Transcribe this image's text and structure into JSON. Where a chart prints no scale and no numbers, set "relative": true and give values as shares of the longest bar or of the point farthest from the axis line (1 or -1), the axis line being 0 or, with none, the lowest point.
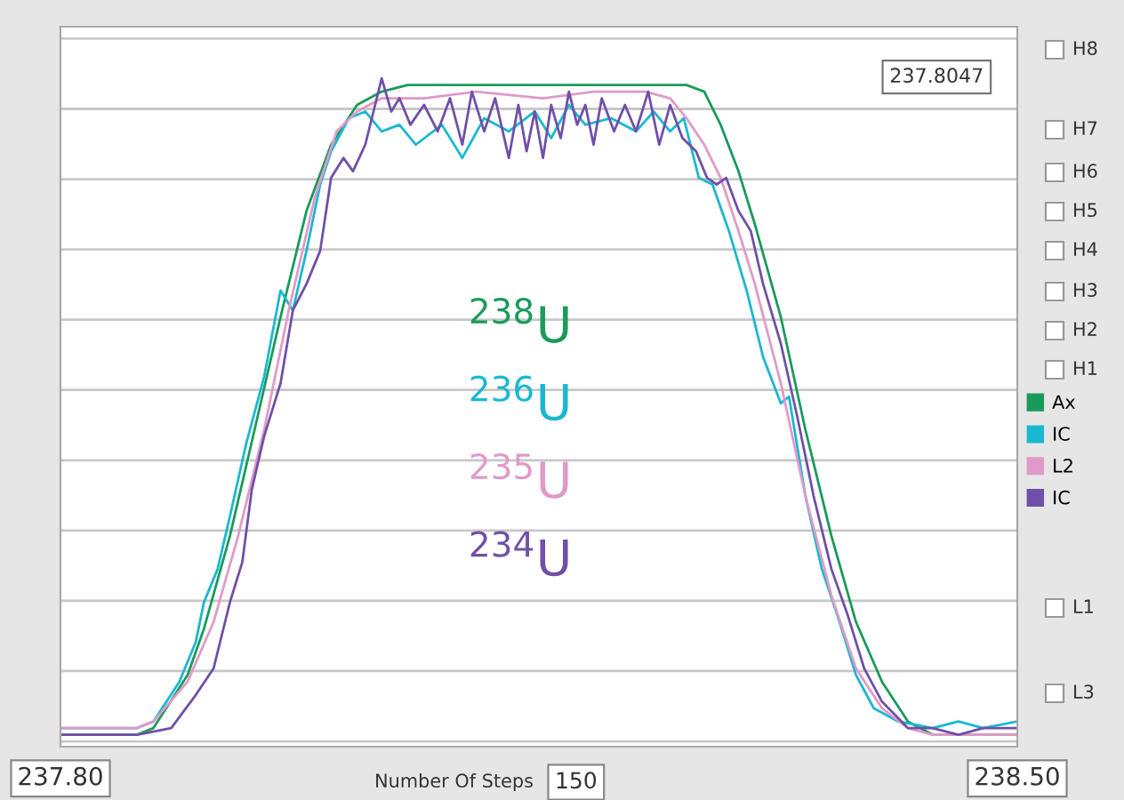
{
  "chart_data": {
    "type": "line",
    "relative": true,
    "xlim": [
      237.8,
      238.5
    ],
    "xticks": [
      {
        "value": 237.8,
        "label": "237.80"
      },
      {
        "value": 238.5,
        "label": "238.50"
      }
    ],
    "tick_labels": "x",
    "grid": "y",
    "legend": "right",
    "marker": "none",
    "line_style": "solid",
    "series": [
      {
        "name": "Ax",
        "color": "#1a9a5a",
        "x": [
          237.8,
          237.856,
          237.868,
          237.893,
          237.905,
          237.924,
          237.942,
          237.961,
          237.98,
          237.998,
          238.017,
          238.035,
          238.054,
          238.153,
          238.258,
          238.271,
          238.283,
          238.296,
          238.308,
          238.327,
          238.345,
          238.364,
          238.382,
          238.401,
          238.42,
          238.438,
          238.5
        ],
        "values": [
          0.01,
          0.01,
          0.02,
          0.1,
          0.17,
          0.31,
          0.47,
          0.64,
          0.8,
          0.9,
          0.96,
          0.98,
          0.99,
          0.99,
          0.99,
          0.98,
          0.93,
          0.86,
          0.78,
          0.64,
          0.47,
          0.31,
          0.18,
          0.09,
          0.03,
          0.01,
          0.01
        ]
      },
      {
        "name": "IC",
        "color": "#1ab8d0",
        "x": [
          237.8,
          237.856,
          237.868,
          237.887,
          237.899,
          237.905,
          237.915,
          237.924,
          237.936,
          237.949,
          237.961,
          237.97,
          237.98,
          237.99,
          237.998,
          238.011,
          238.023,
          238.035,
          238.048,
          238.06,
          238.079,
          238.094,
          238.11,
          238.128,
          238.147,
          238.159,
          238.172,
          238.184,
          238.203,
          238.221,
          238.234,
          238.246,
          238.256,
          238.267,
          238.277,
          238.289,
          238.302,
          238.314,
          238.327,
          238.333,
          238.345,
          238.357,
          238.37,
          238.382,
          238.395,
          238.413,
          238.438,
          238.457,
          238.475,
          238.5
        ],
        "values": [
          0.02,
          0.02,
          0.03,
          0.09,
          0.15,
          0.21,
          0.26,
          0.34,
          0.45,
          0.55,
          0.68,
          0.65,
          0.74,
          0.84,
          0.89,
          0.94,
          0.95,
          0.92,
          0.93,
          0.9,
          0.93,
          0.88,
          0.94,
          0.92,
          0.95,
          0.91,
          0.96,
          0.93,
          0.94,
          0.92,
          0.95,
          0.92,
          0.94,
          0.85,
          0.84,
          0.77,
          0.68,
          0.58,
          0.51,
          0.52,
          0.37,
          0.26,
          0.18,
          0.1,
          0.05,
          0.03,
          0.02,
          0.03,
          0.02,
          0.03
        ]
      },
      {
        "name": "L2",
        "color": "#e09ac8",
        "x": [
          237.8,
          237.856,
          237.868,
          237.893,
          237.912,
          237.93,
          237.949,
          237.967,
          237.986,
          238.002,
          238.017,
          238.035,
          238.066,
          238.104,
          238.153,
          238.19,
          238.228,
          238.246,
          238.258,
          238.271,
          238.283,
          238.296,
          238.308,
          238.327,
          238.345,
          238.364,
          238.382,
          238.401,
          238.42,
          238.438,
          238.5
        ],
        "values": [
          0.02,
          0.02,
          0.03,
          0.09,
          0.18,
          0.31,
          0.47,
          0.65,
          0.82,
          0.92,
          0.95,
          0.97,
          0.97,
          0.98,
          0.97,
          0.98,
          0.98,
          0.97,
          0.94,
          0.9,
          0.85,
          0.77,
          0.69,
          0.54,
          0.37,
          0.22,
          0.11,
          0.05,
          0.02,
          0.01,
          0.01
        ]
      },
      {
        "name": "IC",
        "color": "#7050a8",
        "x": [
          237.8,
          237.856,
          237.881,
          237.899,
          237.912,
          237.924,
          237.933,
          237.94,
          237.949,
          237.961,
          237.97,
          237.98,
          237.99,
          237.998,
          238.007,
          238.014,
          238.023,
          238.029,
          238.035,
          238.042,
          238.048,
          238.056,
          238.066,
          238.076,
          238.085,
          238.094,
          238.101,
          238.11,
          238.118,
          238.128,
          238.135,
          238.141,
          238.147,
          238.153,
          238.159,
          238.166,
          238.172,
          238.178,
          238.184,
          238.19,
          238.196,
          238.205,
          238.213,
          238.221,
          238.23,
          238.238,
          238.246,
          238.255,
          238.265,
          238.273,
          238.28,
          238.287,
          238.296,
          238.305,
          238.314,
          238.327,
          238.339,
          238.351,
          238.364,
          238.376,
          238.388,
          238.401,
          238.42,
          238.438,
          238.457,
          238.475,
          238.5
        ],
        "values": [
          0.01,
          0.01,
          0.02,
          0.07,
          0.11,
          0.21,
          0.27,
          0.38,
          0.46,
          0.54,
          0.65,
          0.69,
          0.74,
          0.85,
          0.88,
          0.86,
          0.9,
          0.95,
          1.0,
          0.95,
          0.97,
          0.93,
          0.96,
          0.92,
          0.97,
          0.9,
          0.98,
          0.92,
          0.97,
          0.88,
          0.96,
          0.89,
          0.95,
          0.88,
          0.96,
          0.91,
          0.98,
          0.93,
          0.96,
          0.9,
          0.97,
          0.92,
          0.96,
          0.92,
          0.98,
          0.9,
          0.96,
          0.91,
          0.89,
          0.85,
          0.84,
          0.85,
          0.8,
          0.77,
          0.69,
          0.6,
          0.49,
          0.37,
          0.26,
          0.19,
          0.11,
          0.06,
          0.02,
          0.02,
          0.01,
          0.02,
          0.02
        ]
      }
    ],
    "annotations": [
      "237.8047",
      "$^{238}$U",
      "$^{236}$U",
      "$^{235}$U",
      "$^{234}$U",
      "Number Of Steps",
      "150",
      "H8",
      "H7",
      "H6",
      "H5",
      "H4",
      "H3",
      "H2",
      "H1",
      "L1",
      "L3"
    ]
  }
}
